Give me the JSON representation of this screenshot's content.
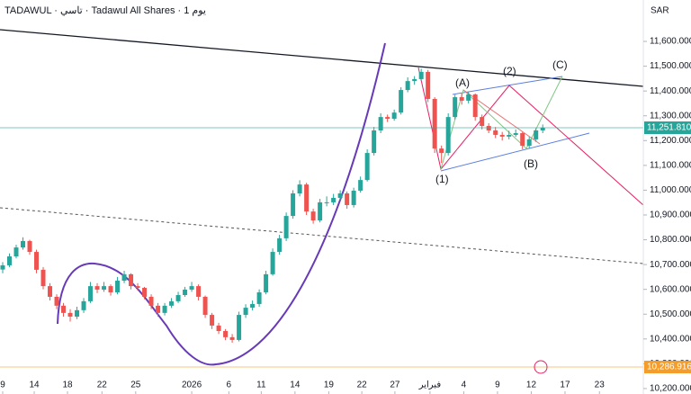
{
  "chart_data": {
    "type": "candlestick",
    "title": "TADAWUL · تاسي · Tadawul All Shares · 1 يوم",
    "currency": "SAR",
    "up_color": "#26a69a",
    "down_color": "#ef5350",
    "ylim": [
      10178,
      11767
    ],
    "yticks": [
      {
        "value": 10200,
        "label": "10,200.000"
      },
      {
        "value": 10300,
        "label": "10,300.000"
      },
      {
        "value": 10400,
        "label": "10,400.000"
      },
      {
        "value": 10500,
        "label": "10,500.000"
      },
      {
        "value": 10600,
        "label": "10,600.000"
      },
      {
        "value": 10700,
        "label": "10,700.000"
      },
      {
        "value": 10800,
        "label": "10,800.000"
      },
      {
        "value": 10900,
        "label": "10,900.000"
      },
      {
        "value": 11000,
        "label": "11,000.000"
      },
      {
        "value": 11100,
        "label": "11,100.000"
      },
      {
        "value": 11200,
        "label": "11,200.000"
      },
      {
        "value": 11300,
        "label": "11,300.000"
      },
      {
        "value": 11400,
        "label": "11,400.000"
      },
      {
        "value": 11500,
        "label": "11,500.000"
      },
      {
        "value": 11600,
        "label": "11,600.000"
      }
    ],
    "xlim": [
      -0.4,
      94.9
    ],
    "xticks": [
      {
        "value": 0,
        "label": "9"
      },
      {
        "value": 4.67,
        "label": "14"
      },
      {
        "value": 9.6,
        "label": "18"
      },
      {
        "value": 14.7,
        "label": "22"
      },
      {
        "value": 19.7,
        "label": "25"
      },
      {
        "value": 28,
        "label": "2026"
      },
      {
        "value": 33.5,
        "label": "6"
      },
      {
        "value": 38.3,
        "label": "11"
      },
      {
        "value": 43.3,
        "label": "14"
      },
      {
        "value": 48.3,
        "label": "19"
      },
      {
        "value": 53.2,
        "label": "22"
      },
      {
        "value": 58.1,
        "label": "27"
      },
      {
        "value": 63.3,
        "label": "فبراير"
      },
      {
        "value": 68.3,
        "label": "4"
      },
      {
        "value": 73.3,
        "label": "9"
      },
      {
        "value": 78.3,
        "label": "12"
      },
      {
        "value": 83.3,
        "label": "17"
      },
      {
        "value": 88.4,
        "label": "23"
      }
    ],
    "candles": [
      [
        10680,
        10710,
        10665,
        10697
      ],
      [
        10697,
        10745,
        10690,
        10733
      ],
      [
        10733,
        10780,
        10725,
        10769
      ],
      [
        10769,
        10810,
        10760,
        10795
      ],
      [
        10795,
        10800,
        10740,
        10751
      ],
      [
        10751,
        10760,
        10665,
        10679
      ],
      [
        10679,
        10690,
        10600,
        10613
      ],
      [
        10613,
        10625,
        10555,
        10570
      ],
      [
        10570,
        10580,
        10520,
        10534
      ],
      [
        10534,
        10545,
        10490,
        10505
      ],
      [
        10505,
        10520,
        10470,
        10490
      ],
      [
        10490,
        10530,
        10480,
        10516
      ],
      [
        10516,
        10565,
        10505,
        10552
      ],
      [
        10552,
        10630,
        10545,
        10613
      ],
      [
        10613,
        10625,
        10585,
        10599
      ],
      [
        10599,
        10630,
        10590,
        10613
      ],
      [
        10613,
        10620,
        10575,
        10588
      ],
      [
        10588,
        10650,
        10580,
        10635
      ],
      [
        10635,
        10675,
        10625,
        10661
      ],
      [
        10661,
        10665,
        10600,
        10613
      ],
      [
        10613,
        10625,
        10595,
        10606
      ],
      [
        10606,
        10610,
        10560,
        10570
      ],
      [
        10570,
        10580,
        10520,
        10534
      ],
      [
        10534,
        10545,
        10490,
        10505
      ],
      [
        10505,
        10545,
        10495,
        10534
      ],
      [
        10534,
        10565,
        10525,
        10552
      ],
      [
        10552,
        10590,
        10545,
        10577
      ],
      [
        10577,
        10610,
        10570,
        10599
      ],
      [
        10599,
        10630,
        10590,
        10613
      ],
      [
        10613,
        10620,
        10555,
        10570
      ],
      [
        10570,
        10575,
        10485,
        10497
      ],
      [
        10497,
        10505,
        10440,
        10454
      ],
      [
        10454,
        10465,
        10420,
        10432
      ],
      [
        10432,
        10440,
        10395,
        10407
      ],
      [
        10407,
        10420,
        10385,
        10396
      ],
      [
        10396,
        10510,
        10390,
        10497
      ],
      [
        10497,
        10540,
        10485,
        10526
      ],
      [
        10526,
        10555,
        10515,
        10541
      ],
      [
        10541,
        10600,
        10530,
        10588
      ],
      [
        10588,
        10675,
        10580,
        10661
      ],
      [
        10661,
        10765,
        10655,
        10751
      ],
      [
        10751,
        10820,
        10740,
        10806
      ],
      [
        10806,
        10910,
        10795,
        10896
      ],
      [
        10896,
        11000,
        10885,
        10987
      ],
      [
        10987,
        11040,
        10975,
        11023
      ],
      [
        11023,
        11030,
        10900,
        10914
      ],
      [
        10914,
        10925,
        10865,
        10878
      ],
      [
        10878,
        10965,
        10870,
        10951
      ],
      [
        10951,
        10975,
        10935,
        10951
      ],
      [
        10951,
        10985,
        10940,
        10969
      ],
      [
        10969,
        11000,
        10960,
        10987
      ],
      [
        10987,
        10995,
        10925,
        10940
      ],
      [
        10940,
        11010,
        10930,
        10998
      ],
      [
        10998,
        11055,
        10990,
        11041
      ],
      [
        11041,
        11165,
        11035,
        11150
      ],
      [
        11150,
        11255,
        11140,
        11241
      ],
      [
        11241,
        11310,
        11230,
        11295
      ],
      [
        11295,
        11305,
        11275,
        11288
      ],
      [
        11288,
        11325,
        11280,
        11313
      ],
      [
        11313,
        11415,
        11305,
        11404
      ],
      [
        11404,
        11455,
        11395,
        11440
      ],
      [
        11440,
        11460,
        11425,
        11448
      ],
      [
        11448,
        11490,
        11440,
        11477
      ],
      [
        11477,
        11485,
        11355,
        11368
      ],
      [
        11368,
        11375,
        11150,
        11168
      ],
      [
        11168,
        11180,
        11110,
        11150
      ],
      [
        11150,
        11310,
        11140,
        11295
      ],
      [
        11295,
        11385,
        11285,
        11375
      ],
      [
        11375,
        11390,
        11345,
        11361
      ],
      [
        11361,
        11395,
        11350,
        11386
      ],
      [
        11386,
        11390,
        11280,
        11295
      ],
      [
        11295,
        11305,
        11245,
        11259
      ],
      [
        11259,
        11270,
        11230,
        11241
      ],
      [
        11241,
        11255,
        11210,
        11223
      ],
      [
        11223,
        11235,
        11200,
        11216
      ],
      [
        11216,
        11240,
        11205,
        11223
      ],
      [
        11223,
        11245,
        11215,
        11230
      ],
      [
        11230,
        11235,
        11165,
        11179
      ],
      [
        11179,
        11215,
        11170,
        11205
      ],
      [
        11205,
        11250,
        11195,
        11241
      ],
      [
        11241,
        11265,
        11230,
        11251.81
      ]
    ],
    "price_lines": [
      {
        "value": 11251.81,
        "label": "11,251.810",
        "color": "#26a69a"
      },
      {
        "value": 10286.916,
        "label": "10,286.916",
        "color": "#f59d2a"
      }
    ],
    "annotations": [
      {
        "text": "(1)",
        "color": "#e91e63"
      },
      {
        "text": "(2)",
        "color": "#e91e63"
      },
      {
        "text": "(A)",
        "color": "#81c784"
      },
      {
        "text": "(B)",
        "color": "#81c784"
      },
      {
        "text": "(C)",
        "color": "#81c784"
      }
    ]
  }
}
